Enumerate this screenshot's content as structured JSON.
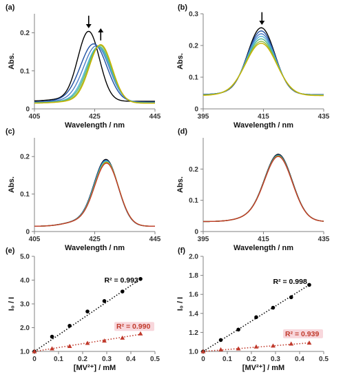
{
  "chart_data": [
    {
      "id": "a",
      "type": "line",
      "panel_label": "(a)",
      "xlabel": "Wavelength / nm",
      "ylabel": "Abs.",
      "xlim": [
        405,
        445
      ],
      "ylim": [
        0,
        0.25
      ],
      "xticks": [
        405,
        425,
        445
      ],
      "yticks": [
        0,
        0.1,
        0.2
      ],
      "ytick_labels": [
        "0",
        "0.1",
        "0.2"
      ],
      "arrows": [
        {
          "x": 423,
          "direction": "down"
        },
        {
          "x": 427,
          "direction": "up"
        }
      ],
      "series": [
        {
          "color": "#000000",
          "peak_x": 423.0,
          "peak_y": 0.203,
          "width": 3.6,
          "base": 0.02
        },
        {
          "color": "#1f4fa0",
          "peak_x": 424.7,
          "peak_y": 0.17,
          "width": 4.4,
          "base": 0.018
        },
        {
          "color": "#4a7cc7",
          "peak_x": 425.6,
          "peak_y": 0.165,
          "width": 4.3,
          "base": 0.017
        },
        {
          "color": "#4fb3d9",
          "peak_x": 426.2,
          "peak_y": 0.162,
          "width": 4.1,
          "base": 0.016
        },
        {
          "color": "#52b788",
          "peak_x": 426.5,
          "peak_y": 0.163,
          "width": 4.0,
          "base": 0.016
        },
        {
          "color": "#8fbc3f",
          "peak_x": 426.8,
          "peak_y": 0.166,
          "width": 3.9,
          "base": 0.015
        },
        {
          "color": "#c9b300",
          "peak_x": 427.0,
          "peak_y": 0.168,
          "width": 3.8,
          "base": 0.015
        }
      ]
    },
    {
      "id": "b",
      "type": "line",
      "panel_label": "(b)",
      "xlabel": "Wavelength / nm",
      "ylabel": "Abs.",
      "xlim": [
        395,
        435
      ],
      "ylim": [
        0,
        0.3
      ],
      "xticks": [
        395,
        415,
        435
      ],
      "yticks": [
        0,
        0.1,
        0.2,
        0.3
      ],
      "ytick_labels": [
        "0",
        "0.1",
        "0.2",
        "0.3"
      ],
      "arrows": [
        {
          "x": 414.5,
          "direction": "down"
        }
      ],
      "series": [
        {
          "color": "#000000",
          "peak_x": 414.3,
          "peak_y": 0.255,
          "width": 4.5,
          "base": 0.045
        },
        {
          "color": "#1f4fa0",
          "peak_x": 414.3,
          "peak_y": 0.245,
          "width": 4.6,
          "base": 0.045
        },
        {
          "color": "#4a7cc7",
          "peak_x": 414.3,
          "peak_y": 0.236,
          "width": 4.7,
          "base": 0.044
        },
        {
          "color": "#4fb3d9",
          "peak_x": 414.3,
          "peak_y": 0.228,
          "width": 4.8,
          "base": 0.044
        },
        {
          "color": "#52b788",
          "peak_x": 414.3,
          "peak_y": 0.22,
          "width": 4.9,
          "base": 0.043
        },
        {
          "color": "#8fbc3f",
          "peak_x": 414.3,
          "peak_y": 0.212,
          "width": 5.0,
          "base": 0.043
        },
        {
          "color": "#c9b300",
          "peak_x": 414.3,
          "peak_y": 0.206,
          "width": 5.1,
          "base": 0.042
        }
      ]
    },
    {
      "id": "c",
      "type": "line",
      "panel_label": "(c)",
      "xlabel": "Wavelength / nm",
      "ylabel": "Abs.",
      "xlim": [
        405,
        445
      ],
      "ylim": [
        0,
        0.25
      ],
      "xticks": [
        405,
        425,
        445
      ],
      "yticks": [
        0,
        0.1,
        0.2
      ],
      "ytick_labels": [
        "0",
        "0.1",
        "0.2"
      ],
      "arrows": [],
      "series": [
        {
          "color": "#000000",
          "peak_x": 428.8,
          "peak_y": 0.19,
          "width": 4.0,
          "base": 0.014
        },
        {
          "color": "#1f4fa0",
          "peak_x": 428.8,
          "peak_y": 0.188,
          "width": 4.0,
          "base": 0.014
        },
        {
          "color": "#4fb3d9",
          "peak_x": 428.9,
          "peak_y": 0.186,
          "width": 4.0,
          "base": 0.014
        },
        {
          "color": "#52b788",
          "peak_x": 428.9,
          "peak_y": 0.184,
          "width": 4.0,
          "base": 0.014
        },
        {
          "color": "#c9b300",
          "peak_x": 429.0,
          "peak_y": 0.182,
          "width": 4.0,
          "base": 0.014
        },
        {
          "color": "#c0392b",
          "peak_x": 429.0,
          "peak_y": 0.18,
          "width": 4.0,
          "base": 0.014
        }
      ]
    },
    {
      "id": "d",
      "type": "line",
      "panel_label": "(d)",
      "xlabel": "Wavelength / nm",
      "ylabel": "Abs.",
      "xlim": [
        395,
        435
      ],
      "ylim": [
        0,
        0.3
      ],
      "xticks": [
        395,
        415,
        435
      ],
      "yticks": [
        0,
        0.1,
        0.2
      ],
      "ytick_labels": [
        "0",
        "0.1",
        "0.2"
      ],
      "arrows": [],
      "series": [
        {
          "color": "#000000",
          "peak_x": 420.0,
          "peak_y": 0.245,
          "width": 4.6,
          "base": 0.032
        },
        {
          "color": "#1f4fa0",
          "peak_x": 420.0,
          "peak_y": 0.243,
          "width": 4.6,
          "base": 0.032
        },
        {
          "color": "#52b788",
          "peak_x": 420.0,
          "peak_y": 0.241,
          "width": 4.6,
          "base": 0.032
        },
        {
          "color": "#c9b300",
          "peak_x": 420.0,
          "peak_y": 0.239,
          "width": 4.6,
          "base": 0.032
        },
        {
          "color": "#c0392b",
          "peak_x": 420.0,
          "peak_y": 0.238,
          "width": 4.6,
          "base": 0.032
        }
      ]
    },
    {
      "id": "e",
      "type": "scatter",
      "panel_label": "(e)",
      "xlabel": "[MV²⁺] / mM",
      "ylabel": "I₀ / I",
      "xlim": [
        0,
        0.5
      ],
      "ylim": [
        1.0,
        5.0
      ],
      "xticks": [
        0,
        0.1,
        0.2,
        0.3,
        0.4,
        0.5
      ],
      "xtick_labels": [
        "0",
        "0.1",
        "0.2",
        "0.3",
        "0.4",
        "0.5"
      ],
      "yticks": [
        1.0,
        2.0,
        3.0,
        4.0,
        5.0
      ],
      "ytick_labels": [
        "1.0",
        "2.0",
        "3.0",
        "4.0",
        "5.0"
      ],
      "series": [
        {
          "marker": "circle",
          "color": "#000000",
          "x": [
            0,
            0.073,
            0.146,
            0.22,
            0.29,
            0.365,
            0.44
          ],
          "y": [
            1.0,
            1.62,
            2.08,
            2.68,
            3.12,
            3.52,
            4.05
          ],
          "fit": [
            0,
            1.0,
            0.44,
            4.05
          ],
          "r2": "R² = 0.993"
        },
        {
          "marker": "triangle",
          "color": "#c0392b",
          "x": [
            0,
            0.073,
            0.146,
            0.22,
            0.29,
            0.365,
            0.44
          ],
          "y": [
            1.0,
            1.12,
            1.22,
            1.35,
            1.45,
            1.57,
            1.75
          ],
          "fit": [
            0,
            1.0,
            0.44,
            1.72
          ],
          "r2": "R² = 0.990"
        }
      ]
    },
    {
      "id": "f",
      "type": "scatter",
      "panel_label": "(f)",
      "xlabel": "[MV²⁺] / mM",
      "ylabel": "I₀ / I",
      "xlim": [
        0,
        0.5
      ],
      "ylim": [
        1.0,
        2.0
      ],
      "xticks": [
        0,
        0.1,
        0.2,
        0.3,
        0.4,
        0.5
      ],
      "xtick_labels": [
        "0",
        "0.1",
        "0.2",
        "0.3",
        "0.4",
        "0.5"
      ],
      "yticks": [
        1.0,
        1.2,
        1.4,
        1.6,
        1.8,
        2.0
      ],
      "ytick_labels": [
        "1.0",
        "1.2",
        "1.4",
        "1.6",
        "1.8",
        "2.0"
      ],
      "series": [
        {
          "marker": "circle",
          "color": "#000000",
          "x": [
            0,
            0.073,
            0.146,
            0.22,
            0.29,
            0.365,
            0.44
          ],
          "y": [
            1.0,
            1.12,
            1.23,
            1.36,
            1.46,
            1.57,
            1.7
          ],
          "fit": [
            0,
            1.0,
            0.44,
            1.7
          ],
          "r2": "R² = 0.998"
        },
        {
          "marker": "triangle",
          "color": "#c0392b",
          "x": [
            0,
            0.073,
            0.146,
            0.22,
            0.29,
            0.365,
            0.44
          ],
          "y": [
            1.0,
            1.02,
            1.03,
            1.05,
            1.06,
            1.08,
            1.09
          ],
          "fit": [
            0,
            1.0,
            0.44,
            1.09
          ],
          "r2": "R² = 0.939"
        }
      ]
    }
  ]
}
